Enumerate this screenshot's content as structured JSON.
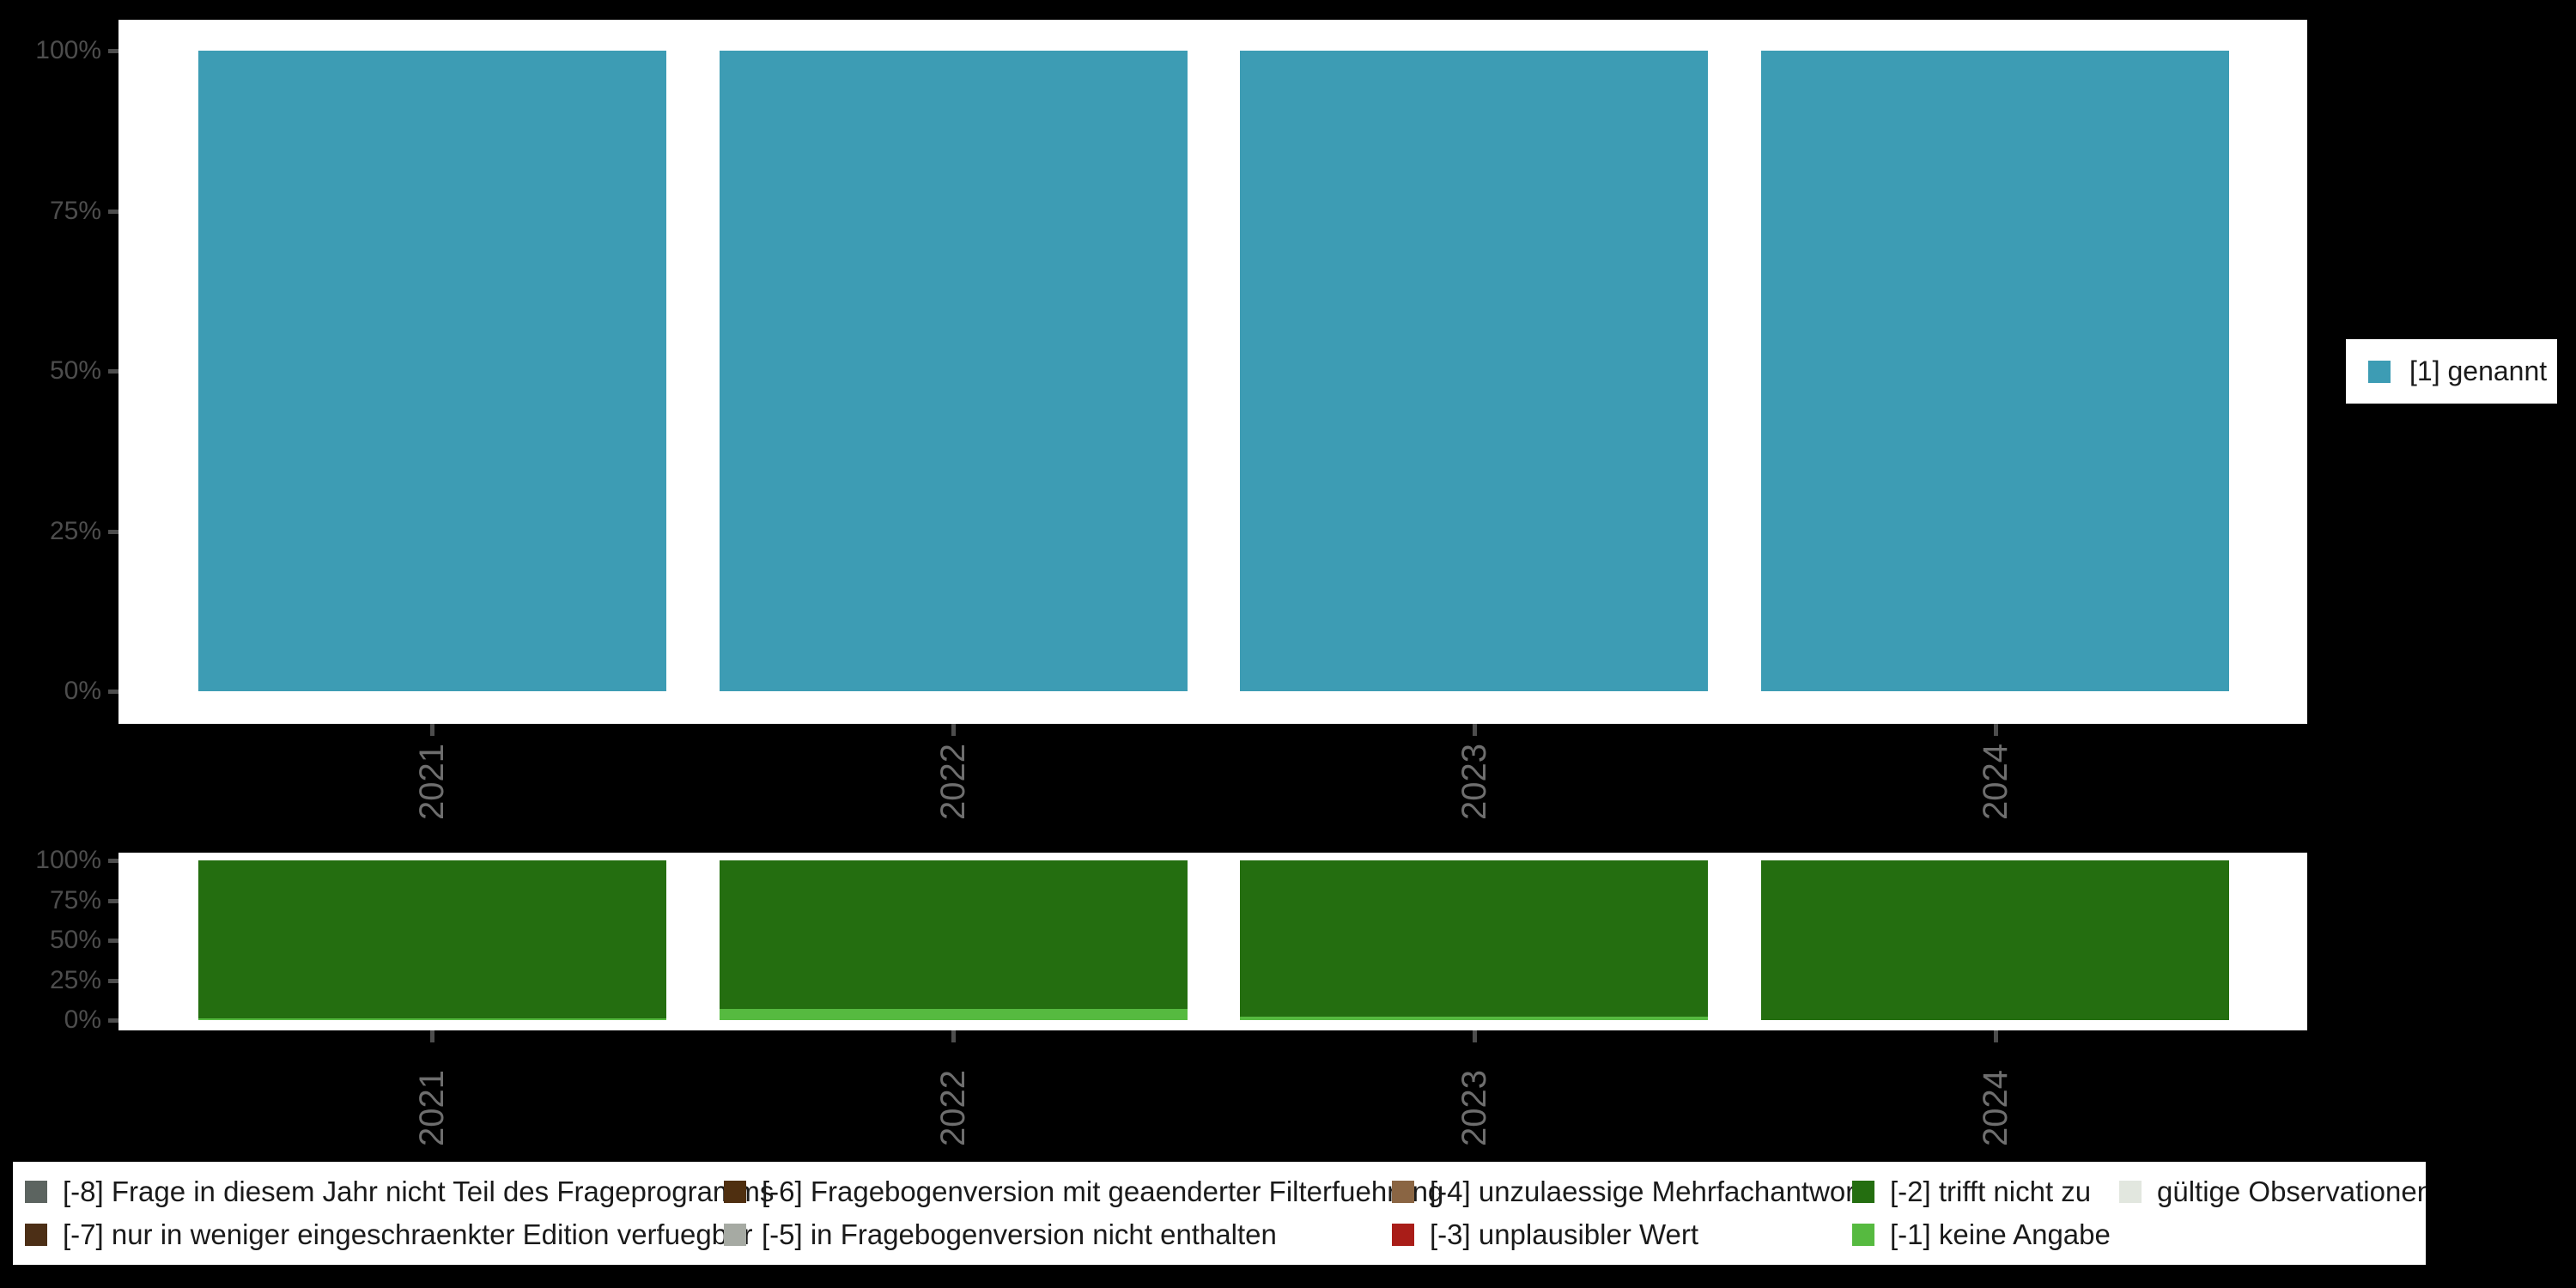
{
  "figure": {
    "background_color": "#000000",
    "panel_color": "#ffffff",
    "axis_text_color_y": "#4d4d4d",
    "axis_text_color_x": "#6e6e6e"
  },
  "axes": {
    "y_tick_labels_top_to_bottom": [
      "100%",
      "75%",
      "50%",
      "25%",
      "0%"
    ],
    "x_tick_labels": [
      "2021",
      "2022",
      "2023",
      "2024"
    ],
    "x_label_rotation_degrees": -90
  },
  "chart_data": [
    {
      "id": "top-frequency-chart",
      "type": "bar",
      "stacked": true,
      "categories": [
        "2021",
        "2022",
        "2023",
        "2024"
      ],
      "series": [
        {
          "name": "[1] genannt",
          "color": "#3d9cb4",
          "values": [
            100,
            100,
            100,
            100
          ]
        }
      ],
      "ylim": [
        0,
        100
      ],
      "y_tick_labels": [
        "0%",
        "25%",
        "50%",
        "75%",
        "100%"
      ],
      "grid": false,
      "legend_position": "right"
    },
    {
      "id": "bottom-missings-chart",
      "type": "bar",
      "stacked": true,
      "series_order": "bottom-to-top",
      "categories": [
        "2021",
        "2022",
        "2023",
        "2024"
      ],
      "series": [
        {
          "name": "[-1] keine Angabe",
          "color": "#56ba40",
          "values": [
            1,
            7,
            2,
            0
          ]
        },
        {
          "name": "[-2] trifft nicht zu",
          "color": "#246e10",
          "values": [
            99,
            93,
            98,
            100
          ]
        }
      ],
      "ylim": [
        0,
        100
      ],
      "y_tick_labels": [
        "0%",
        "25%",
        "50%",
        "75%",
        "100%"
      ],
      "grid": false,
      "legend_position": "bottom"
    }
  ],
  "legend_top": {
    "items": [
      {
        "label": "[1] genannt",
        "color": "#3d9cb4"
      }
    ]
  },
  "legend_bottom": {
    "rows": [
      [
        {
          "label": "[-8] Frage in diesem Jahr nicht Teil des Frageprogramms",
          "color": "#5c6460"
        },
        {
          "label": "[-6] Fragebogenversion mit geaenderter Filterfuehrung",
          "color": "#4f2f10"
        },
        {
          "label": "[-4] unzulaessige Mehrfachantwort",
          "color": "#8a6543"
        },
        {
          "label": "[-2] trifft nicht zu",
          "color": "#246e10"
        },
        {
          "label": "gültige Observationen",
          "color": "#e2e7df"
        }
      ],
      [
        {
          "label": "[-7] nur in weniger eingeschraenkter Edition verfuegbar",
          "color": "#4c2f16"
        },
        {
          "label": "[-5] in Fragebogenversion nicht enthalten",
          "color": "#a6aaa3"
        },
        {
          "label": "[-3] unplausibler Wert",
          "color": "#a91d18"
        },
        {
          "label": "[-1] keine Angabe",
          "color": "#56ba40"
        }
      ]
    ]
  }
}
